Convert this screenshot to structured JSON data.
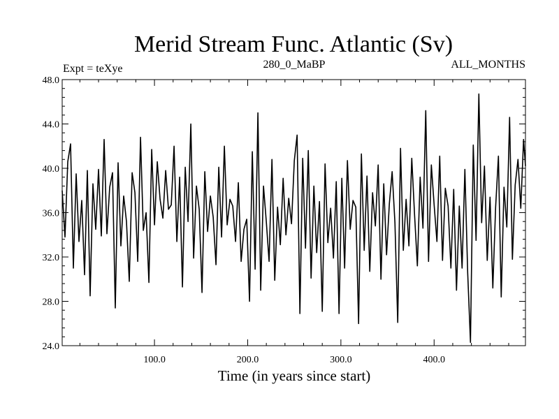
{
  "chart_data": {
    "type": "line",
    "title": "Merid Stream Func. Atlantic (Sv)",
    "left_label": "Expt = teXye",
    "center_label": "280_0_MaBP",
    "right_label": "ALL_MONTHS",
    "xlabel": "Time (in years since start)",
    "ylabel": "",
    "xlim": [
      1,
      498
    ],
    "ylim": [
      24.0,
      48.0
    ],
    "x_ticks": [
      100,
      200,
      300,
      400
    ],
    "x_tick_labels": [
      "100.0",
      "200.0",
      "300.0",
      "400.0"
    ],
    "y_ticks": [
      24,
      28,
      32,
      36,
      40,
      44,
      48
    ],
    "y_tick_labels": [
      "24.0",
      "28.0",
      "32.0",
      "36.0",
      "40.0",
      "44.0",
      "48.0"
    ],
    "grid": false,
    "line_color": "#000000",
    "series": [
      {
        "x": [
          1,
          4,
          7,
          10,
          13,
          16,
          19,
          22,
          25,
          28,
          31,
          34,
          37,
          40,
          43,
          46,
          49,
          52,
          55,
          58,
          61,
          64,
          67,
          70,
          73,
          76,
          79,
          82,
          85,
          88,
          91,
          94,
          97,
          100,
          103,
          106,
          109,
          112,
          115,
          118,
          121,
          124,
          127,
          130,
          133,
          136,
          139,
          142,
          145,
          148,
          151,
          154,
          157,
          160,
          163,
          166,
          169,
          172,
          175,
          178,
          181,
          184,
          187,
          190,
          193,
          196,
          199,
          202,
          205,
          208,
          211,
          214,
          217,
          220,
          223,
          226,
          229,
          232,
          235,
          238,
          241,
          244,
          247,
          250,
          253,
          256,
          259,
          262,
          265,
          268,
          271,
          274,
          277,
          280,
          283,
          286,
          289,
          292,
          295,
          298,
          301,
          304,
          307,
          310,
          313,
          316,
          319,
          322,
          325,
          328,
          331,
          334,
          337,
          340,
          343,
          346,
          349,
          352,
          355,
          358,
          361,
          364,
          367,
          370,
          373,
          376,
          379,
          382,
          385,
          388,
          391,
          394,
          397,
          400,
          403,
          406,
          409,
          412,
          415,
          418,
          421,
          424,
          427,
          430,
          433,
          436,
          439,
          442,
          445,
          448,
          451,
          454,
          457,
          460,
          463,
          466,
          469,
          472,
          475,
          478,
          481,
          484,
          487,
          490,
          493,
          496,
          498
        ],
        "y": [
          38.0,
          33.8,
          40.6,
          42.2,
          31.0,
          39.5,
          33.4,
          37.1,
          30.4,
          39.8,
          28.5,
          38.6,
          34.5,
          39.9,
          33.9,
          42.6,
          34.1,
          38.3,
          39.6,
          27.4,
          40.5,
          33.0,
          37.5,
          35.2,
          29.8,
          39.6,
          37.8,
          31.6,
          42.8,
          34.4,
          36.0,
          29.7,
          41.7,
          34.9,
          40.6,
          37.2,
          35.5,
          39.8,
          36.3,
          36.7,
          42.0,
          33.4,
          39.2,
          29.3,
          40.1,
          35.2,
          44.0,
          31.9,
          38.4,
          36.3,
          28.8,
          39.7,
          34.3,
          37.5,
          35.6,
          31.3,
          40.1,
          33.8,
          42.0,
          34.9,
          37.2,
          36.6,
          33.4,
          38.7,
          31.6,
          34.5,
          35.4,
          28.0,
          41.5,
          30.9,
          45.0,
          29.0,
          38.4,
          35.2,
          31.6,
          40.8,
          29.9,
          36.5,
          33.1,
          39.1,
          34.0,
          37.3,
          35.0,
          40.7,
          43.0,
          26.9,
          40.9,
          32.8,
          41.6,
          30.1,
          38.4,
          32.4,
          37.0,
          27.1,
          40.4,
          33.3,
          36.4,
          31.9,
          38.8,
          26.9,
          39.1,
          31.0,
          40.7,
          34.5,
          37.1,
          36.5,
          26.0,
          41.3,
          32.6,
          39.3,
          30.7,
          37.8,
          34.8,
          40.3,
          30.0,
          38.6,
          32.2,
          36.8,
          39.7,
          35.1,
          26.1,
          41.8,
          32.6,
          37.2,
          33.0,
          40.9,
          35.8,
          31.2,
          39.2,
          34.6,
          45.2,
          31.6,
          40.3,
          36.7,
          33.4,
          41.1,
          31.7,
          38.2,
          36.6,
          31.0,
          38.1,
          29.0,
          36.6,
          31.0,
          39.9,
          30.6,
          24.3,
          42.1,
          33.5,
          46.7,
          35.1,
          40.2,
          31.7,
          37.4,
          29.2,
          36.5,
          41.1,
          28.4,
          38.3,
          34.7,
          44.6,
          31.8,
          38.5,
          40.8,
          36.4,
          42.6,
          40.2
        ]
      }
    ]
  }
}
